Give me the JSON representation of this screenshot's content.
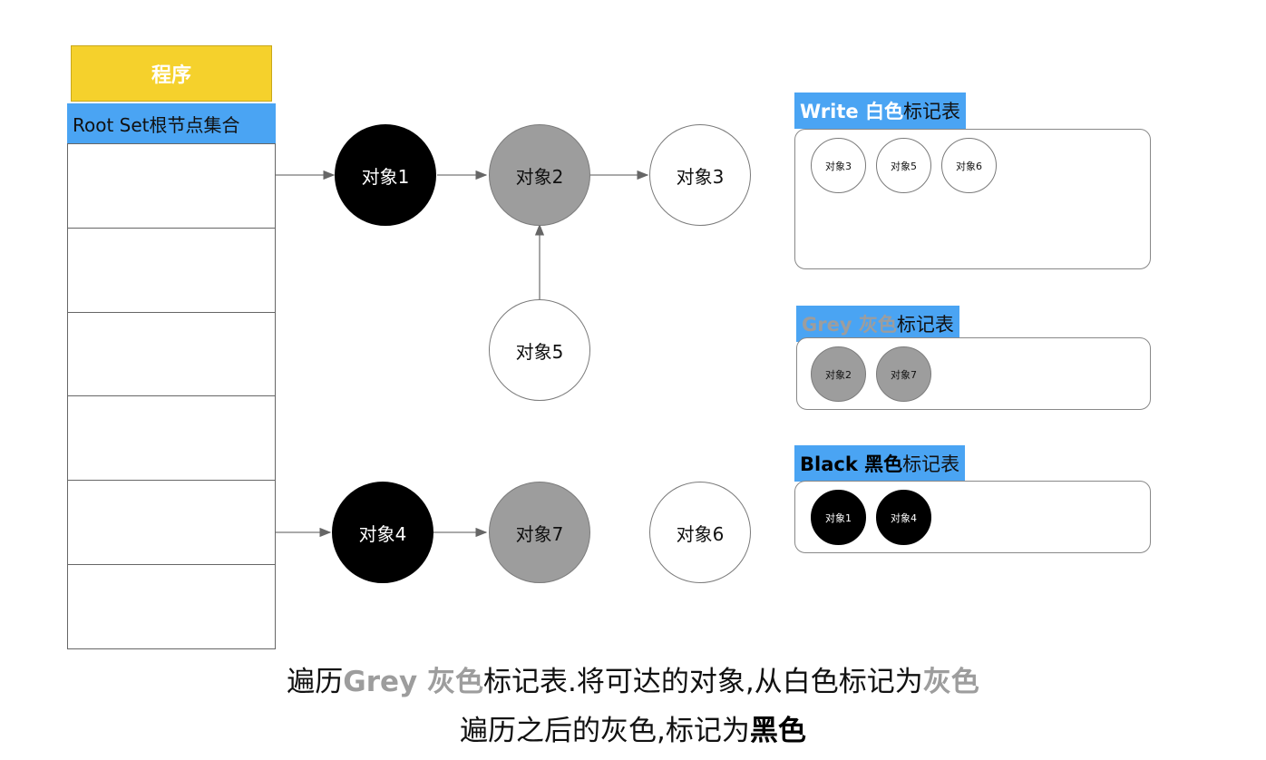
{
  "program": {
    "label": "程序"
  },
  "root_set": {
    "label": "Root Set根节点集合",
    "rows": 6
  },
  "nodes": {
    "obj1": "对象1",
    "obj2": "对象2",
    "obj3": "对象3",
    "obj4": "对象4",
    "obj5": "对象5",
    "obj6": "对象6",
    "obj7": "对象7"
  },
  "node_colors": {
    "obj1": "black",
    "obj2": "grey",
    "obj3": "white",
    "obj4": "black",
    "obj5": "white",
    "obj6": "white",
    "obj7": "grey"
  },
  "tables": {
    "white": {
      "label_keyword": "Write 白色",
      "label_suffix": "标记表",
      "items": [
        "对象3",
        "对象5",
        "对象6"
      ]
    },
    "grey": {
      "label_keyword": "Grey 灰色",
      "label_suffix": "标记表",
      "items": [
        "对象2",
        "对象7"
      ]
    },
    "black": {
      "label_keyword": "Black 黑色",
      "label_suffix": "标记表",
      "items": [
        "对象1",
        "对象4"
      ]
    }
  },
  "caption": {
    "line1_a": "遍历",
    "line1_b": "Grey 灰色",
    "line1_c": "标记表.将可达的对象,从白色标记为",
    "line1_d": "灰色",
    "line2_a": "遍历之后的灰色,标记为",
    "line2_b": "黑色"
  },
  "colors": {
    "program_bg": "#f5d12c",
    "label_bg": "#4aa4f3",
    "grey_node": "#9d9d9d",
    "black_node": "#000000"
  }
}
